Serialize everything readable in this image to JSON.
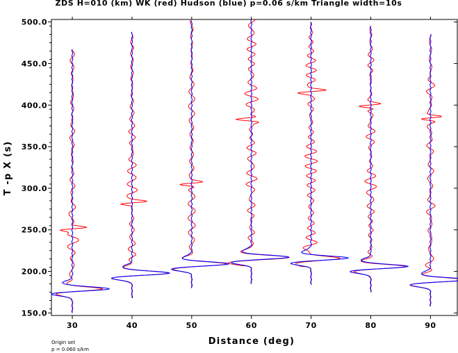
{
  "chart_data": {
    "type": "line",
    "title": "ZDS H=010 (km) WK (red) Hudson (blue) p=0.06 s/km Triangle width=10s",
    "xlabel": "Distance (deg)",
    "ylabel": "T -p X (s)",
    "xlim": [
      26.5,
      94.5
    ],
    "ylim": [
      147,
      503
    ],
    "xticks": [
      30,
      40,
      50,
      60,
      70,
      80,
      90
    ],
    "yticks": [
      150.0,
      200.0,
      250.0,
      300.0,
      350.0,
      400.0,
      450.0,
      500.0
    ],
    "ytick_labels": [
      "150.0",
      "200.0",
      "250.0",
      "300.0",
      "350.0",
      "400.0",
      "450.0",
      "500.0"
    ],
    "grid": false,
    "series": [
      {
        "name": "WK",
        "color": "#ff0000"
      },
      {
        "name": "Hudson",
        "color": "#0000ff"
      }
    ],
    "traces": [
      {
        "distance": 30,
        "t_start": 150,
        "t_end": 467,
        "pulse_t": 179,
        "ripple_end_t": 260
      },
      {
        "distance": 40,
        "t_start": 168,
        "t_end": 488,
        "pulse_t": 198,
        "ripple_end_t": 320
      },
      {
        "distance": 50,
        "t_start": 180,
        "t_end": 502,
        "pulse_t": 209,
        "ripple_end_t": 390
      },
      {
        "distance": 60,
        "t_start": 185,
        "t_end": 503,
        "pulse_t": 217,
        "ripple_end_t": 480
      },
      {
        "distance": 70,
        "t_start": 184,
        "t_end": 500,
        "pulse_t": 216,
        "ripple_end_t": 490
      },
      {
        "distance": 80,
        "t_start": 175,
        "t_end": 495,
        "pulse_t": 206,
        "ripple_end_t": 400
      },
      {
        "distance": 90,
        "t_start": 158,
        "t_end": 485,
        "pulse_t": 190,
        "ripple_end_t": 410
      }
    ]
  },
  "footer": {
    "line1": "Origin set",
    "line2": "p = 0.060 s/km"
  }
}
